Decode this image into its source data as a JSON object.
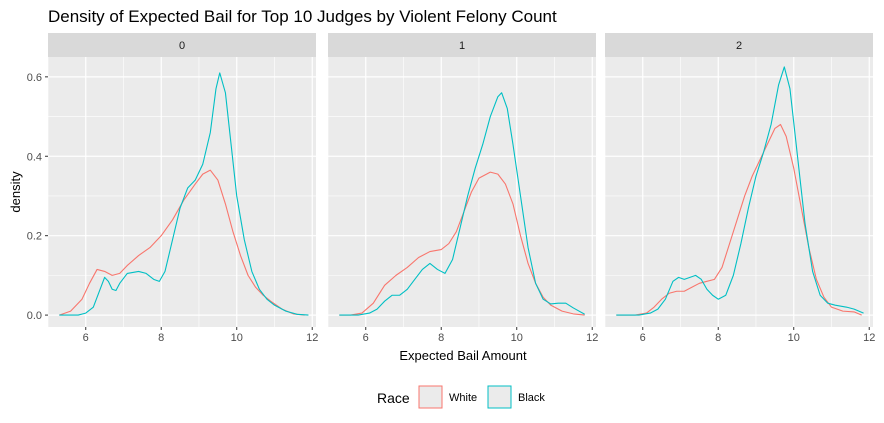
{
  "chart_data": {
    "type": "line",
    "title": "Density of Expected Bail for Top 10 Judges by Violent Felony Count",
    "xlabel": "Expected Bail Amount",
    "ylabel": "density",
    "xlim": [
      5.0,
      12.1
    ],
    "ylim": [
      -0.03,
      0.65
    ],
    "x_ticks": [
      6,
      8,
      10,
      12
    ],
    "y_ticks": [
      0.0,
      0.2,
      0.4,
      0.6
    ],
    "x_tick_labels": [
      "6",
      "8",
      "10",
      "12"
    ],
    "y_tick_labels": [
      "0.0",
      "0.2",
      "0.4",
      "0.6"
    ],
    "grid": true,
    "legend": {
      "title": "Race",
      "position": "bottom",
      "entries": [
        "White",
        "Black"
      ]
    },
    "colors": {
      "White": "#F8766D",
      "Black": "#00BFC4",
      "panel_bg": "#EBEBEB",
      "strip_bg": "#D9D9D9",
      "grid": "#FFFFFF"
    },
    "facets": [
      {
        "label": "0",
        "series": [
          {
            "name": "White",
            "points": [
              [
                5.3,
                0.0
              ],
              [
                5.6,
                0.01
              ],
              [
                5.9,
                0.04
              ],
              [
                6.1,
                0.08
              ],
              [
                6.3,
                0.115
              ],
              [
                6.5,
                0.11
              ],
              [
                6.7,
                0.1
              ],
              [
                6.9,
                0.105
              ],
              [
                7.1,
                0.125
              ],
              [
                7.4,
                0.15
              ],
              [
                7.7,
                0.17
              ],
              [
                8.0,
                0.2
              ],
              [
                8.3,
                0.24
              ],
              [
                8.6,
                0.29
              ],
              [
                8.9,
                0.33
              ],
              [
                9.1,
                0.355
              ],
              [
                9.3,
                0.365
              ],
              [
                9.5,
                0.34
              ],
              [
                9.7,
                0.28
              ],
              [
                9.9,
                0.21
              ],
              [
                10.1,
                0.15
              ],
              [
                10.3,
                0.1
              ],
              [
                10.5,
                0.07
              ],
              [
                10.7,
                0.05
              ],
              [
                10.9,
                0.035
              ],
              [
                11.2,
                0.015
              ],
              [
                11.5,
                0.003
              ],
              [
                11.8,
                0.0
              ]
            ]
          },
          {
            "name": "Black",
            "points": [
              [
                5.3,
                0.0
              ],
              [
                5.8,
                0.0
              ],
              [
                6.0,
                0.005
              ],
              [
                6.2,
                0.02
              ],
              [
                6.4,
                0.07
              ],
              [
                6.5,
                0.095
              ],
              [
                6.6,
                0.085
              ],
              [
                6.7,
                0.065
              ],
              [
                6.8,
                0.062
              ],
              [
                6.9,
                0.08
              ],
              [
                7.1,
                0.105
              ],
              [
                7.4,
                0.11
              ],
              [
                7.6,
                0.105
              ],
              [
                7.8,
                0.09
              ],
              [
                7.95,
                0.085
              ],
              [
                8.1,
                0.11
              ],
              [
                8.3,
                0.19
              ],
              [
                8.5,
                0.27
              ],
              [
                8.7,
                0.32
              ],
              [
                8.9,
                0.34
              ],
              [
                9.1,
                0.38
              ],
              [
                9.3,
                0.46
              ],
              [
                9.45,
                0.57
              ],
              [
                9.55,
                0.61
              ],
              [
                9.7,
                0.56
              ],
              [
                9.85,
                0.43
              ],
              [
                10.0,
                0.3
              ],
              [
                10.2,
                0.19
              ],
              [
                10.4,
                0.11
              ],
              [
                10.6,
                0.065
              ],
              [
                10.8,
                0.04
              ],
              [
                11.0,
                0.025
              ],
              [
                11.3,
                0.01
              ],
              [
                11.6,
                0.002
              ],
              [
                11.9,
                0.0
              ]
            ]
          }
        ]
      },
      {
        "label": "1",
        "series": [
          {
            "name": "White",
            "points": [
              [
                5.3,
                0.0
              ],
              [
                5.6,
                0.0
              ],
              [
                5.9,
                0.005
              ],
              [
                6.2,
                0.03
              ],
              [
                6.5,
                0.075
              ],
              [
                6.8,
                0.1
              ],
              [
                7.1,
                0.12
              ],
              [
                7.4,
                0.145
              ],
              [
                7.7,
                0.16
              ],
              [
                8.0,
                0.165
              ],
              [
                8.2,
                0.18
              ],
              [
                8.4,
                0.21
              ],
              [
                8.6,
                0.26
              ],
              [
                8.8,
                0.31
              ],
              [
                9.0,
                0.345
              ],
              [
                9.3,
                0.36
              ],
              [
                9.5,
                0.355
              ],
              [
                9.7,
                0.33
              ],
              [
                9.9,
                0.28
              ],
              [
                10.1,
                0.2
              ],
              [
                10.3,
                0.13
              ],
              [
                10.5,
                0.08
              ],
              [
                10.7,
                0.045
              ],
              [
                10.9,
                0.025
              ],
              [
                11.2,
                0.01
              ],
              [
                11.5,
                0.003
              ],
              [
                11.8,
                0.0
              ]
            ]
          },
          {
            "name": "Black",
            "points": [
              [
                5.3,
                0.0
              ],
              [
                5.8,
                0.0
              ],
              [
                6.1,
                0.005
              ],
              [
                6.3,
                0.015
              ],
              [
                6.5,
                0.035
              ],
              [
                6.7,
                0.05
              ],
              [
                6.9,
                0.05
              ],
              [
                7.1,
                0.065
              ],
              [
                7.3,
                0.09
              ],
              [
                7.5,
                0.115
              ],
              [
                7.7,
                0.13
              ],
              [
                7.9,
                0.115
              ],
              [
                8.1,
                0.105
              ],
              [
                8.3,
                0.14
              ],
              [
                8.5,
                0.22
              ],
              [
                8.7,
                0.3
              ],
              [
                8.9,
                0.37
              ],
              [
                9.1,
                0.43
              ],
              [
                9.3,
                0.5
              ],
              [
                9.5,
                0.55
              ],
              [
                9.6,
                0.56
              ],
              [
                9.75,
                0.52
              ],
              [
                9.9,
                0.43
              ],
              [
                10.1,
                0.3
              ],
              [
                10.3,
                0.17
              ],
              [
                10.5,
                0.08
              ],
              [
                10.7,
                0.04
              ],
              [
                10.9,
                0.028
              ],
              [
                11.1,
                0.03
              ],
              [
                11.3,
                0.03
              ],
              [
                11.5,
                0.018
              ],
              [
                11.8,
                0.002
              ]
            ]
          }
        ]
      },
      {
        "label": "2",
        "series": [
          {
            "name": "White",
            "points": [
              [
                5.3,
                0.0
              ],
              [
                5.8,
                0.0
              ],
              [
                6.1,
                0.005
              ],
              [
                6.3,
                0.02
              ],
              [
                6.5,
                0.04
              ],
              [
                6.7,
                0.055
              ],
              [
                6.9,
                0.06
              ],
              [
                7.1,
                0.06
              ],
              [
                7.3,
                0.07
              ],
              [
                7.5,
                0.08
              ],
              [
                7.7,
                0.085
              ],
              [
                7.9,
                0.09
              ],
              [
                8.1,
                0.12
              ],
              [
                8.3,
                0.18
              ],
              [
                8.5,
                0.24
              ],
              [
                8.7,
                0.3
              ],
              [
                8.9,
                0.35
              ],
              [
                9.1,
                0.39
              ],
              [
                9.3,
                0.43
              ],
              [
                9.5,
                0.47
              ],
              [
                9.65,
                0.48
              ],
              [
                9.8,
                0.45
              ],
              [
                10.0,
                0.37
              ],
              [
                10.2,
                0.27
              ],
              [
                10.4,
                0.17
              ],
              [
                10.6,
                0.09
              ],
              [
                10.8,
                0.045
              ],
              [
                11.0,
                0.02
              ],
              [
                11.3,
                0.01
              ],
              [
                11.6,
                0.008
              ],
              [
                11.8,
                0.0
              ]
            ]
          },
          {
            "name": "Black",
            "points": [
              [
                5.3,
                0.0
              ],
              [
                5.9,
                0.0
              ],
              [
                6.2,
                0.005
              ],
              [
                6.4,
                0.015
              ],
              [
                6.6,
                0.04
              ],
              [
                6.8,
                0.085
              ],
              [
                6.95,
                0.095
              ],
              [
                7.1,
                0.09
              ],
              [
                7.25,
                0.095
              ],
              [
                7.4,
                0.1
              ],
              [
                7.55,
                0.09
              ],
              [
                7.7,
                0.065
              ],
              [
                7.85,
                0.05
              ],
              [
                8.0,
                0.04
              ],
              [
                8.2,
                0.05
              ],
              [
                8.4,
                0.1
              ],
              [
                8.6,
                0.18
              ],
              [
                8.8,
                0.27
              ],
              [
                9.0,
                0.35
              ],
              [
                9.2,
                0.41
              ],
              [
                9.4,
                0.48
              ],
              [
                9.6,
                0.58
              ],
              [
                9.75,
                0.625
              ],
              [
                9.9,
                0.57
              ],
              [
                10.1,
                0.4
              ],
              [
                10.3,
                0.23
              ],
              [
                10.5,
                0.11
              ],
              [
                10.7,
                0.05
              ],
              [
                10.9,
                0.03
              ],
              [
                11.1,
                0.025
              ],
              [
                11.4,
                0.02
              ],
              [
                11.6,
                0.015
              ],
              [
                11.85,
                0.005
              ]
            ]
          }
        ]
      }
    ]
  }
}
